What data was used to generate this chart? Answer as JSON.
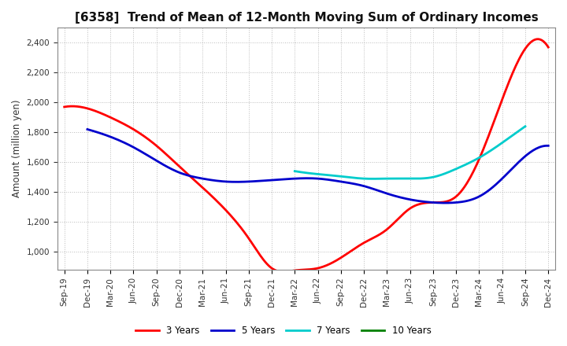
{
  "title": "[6358]  Trend of Mean of 12-Month Moving Sum of Ordinary Incomes",
  "ylabel": "Amount (million yen)",
  "ylim": [
    880,
    2500
  ],
  "yticks": [
    1000,
    1200,
    1400,
    1600,
    1800,
    2000,
    2200,
    2400
  ],
  "x_labels": [
    "Sep-19",
    "Dec-19",
    "Mar-20",
    "Jun-20",
    "Sep-20",
    "Dec-20",
    "Mar-21",
    "Jun-21",
    "Sep-21",
    "Dec-21",
    "Mar-22",
    "Jun-22",
    "Sep-22",
    "Dec-22",
    "Mar-23",
    "Jun-23",
    "Sep-23",
    "Dec-23",
    "Mar-24",
    "Jun-24",
    "Sep-24",
    "Dec-24"
  ],
  "series": {
    "3 Years": {
      "color": "#FF0000",
      "data": [
        1970,
        1960,
        1900,
        1820,
        1710,
        1570,
        1430,
        1280,
        1090,
        890,
        875,
        890,
        960,
        1060,
        1150,
        1290,
        1330,
        1370,
        1620,
        2020,
        2360,
        2370
      ]
    },
    "5 Years": {
      "color": "#0000CC",
      "data": [
        null,
        1820,
        1770,
        1700,
        1610,
        1530,
        1490,
        1470,
        1470,
        1480,
        1490,
        1490,
        1470,
        1440,
        1390,
        1350,
        1330,
        1330,
        1370,
        1490,
        1640,
        1710
      ]
    },
    "7 Years": {
      "color": "#00CCCC",
      "data": [
        null,
        null,
        null,
        null,
        null,
        null,
        null,
        null,
        null,
        null,
        1540,
        1520,
        1505,
        1490,
        1490,
        1490,
        1500,
        1555,
        1630,
        1730,
        1840,
        null
      ]
    },
    "10 Years": {
      "color": "#008000",
      "data": [
        null,
        null,
        null,
        null,
        null,
        null,
        null,
        null,
        null,
        null,
        null,
        null,
        null,
        null,
        null,
        null,
        null,
        null,
        null,
        null,
        null,
        null
      ]
    }
  },
  "legend_labels": [
    "3 Years",
    "5 Years",
    "7 Years",
    "10 Years"
  ],
  "background_color": "#FFFFFF",
  "grid_color": "#AAAAAA",
  "title_fontsize": 11,
  "tick_fontsize": 7.5,
  "ylabel_fontsize": 8.5
}
